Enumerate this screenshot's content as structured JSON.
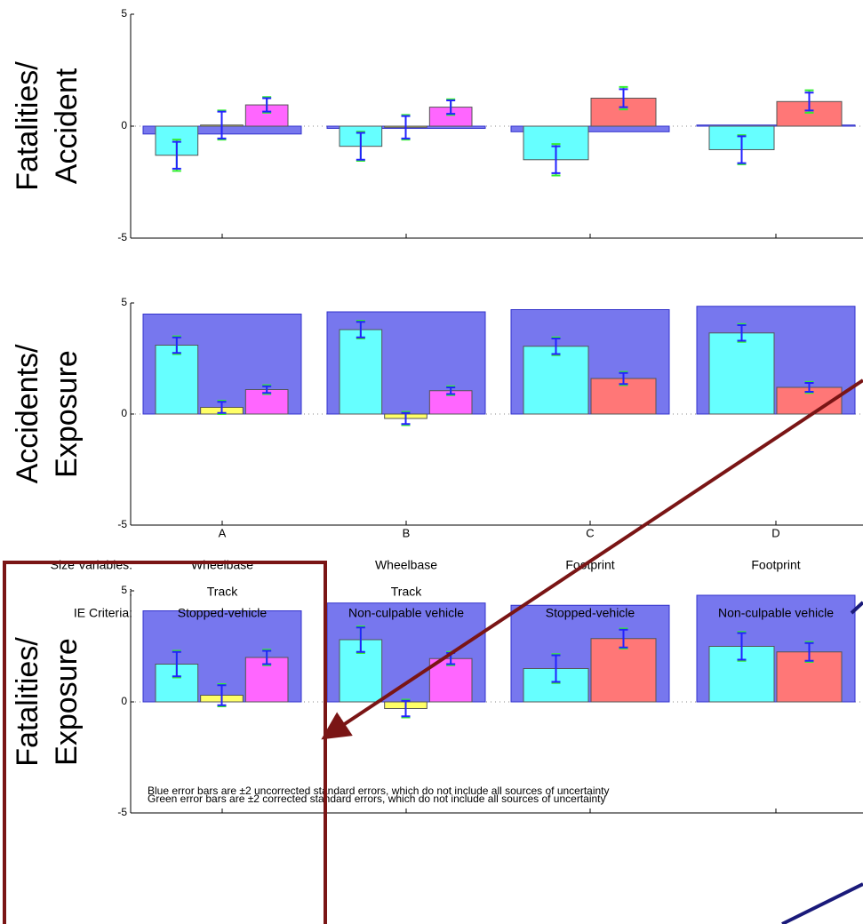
{
  "categories": [
    "A",
    "B",
    "C",
    "D"
  ],
  "notes": [
    {
      "text": "Blue error bars are ±2 uncorrected standard errors, which do not include all sources of uncertainty",
      "color": "#2222ff"
    },
    {
      "text": "Green error bars are ±2 corrected standard errors, which do not include all sources of uncertainty",
      "color": "#33ee33"
    }
  ],
  "table": {
    "rows": [
      {
        "label": "Size Variables:",
        "cells": [
          "Wheelbase",
          "Wheelbase",
          "Footprint",
          "Footprint"
        ]
      },
      {
        "label": ":",
        "cells": [
          "Track",
          "Track"
        ]
      },
      {
        "label": "IE Criteria:",
        "cells": [
          "Stopped-vehicle",
          "Non-culpable vehicle",
          "Stopped-vehicle",
          "Non-culpable vehicle"
        ]
      }
    ]
  },
  "chart_data": [
    {
      "type": "bar",
      "ylabel": [
        "Fatalities/",
        "Accident"
      ],
      "ylim": [
        -5,
        5
      ],
      "yticks": [
        -5,
        0,
        5
      ],
      "total_color": "#7777ee",
      "error_color": "#2222ff",
      "corrected_error_color": "#33ee33",
      "groups": [
        {
          "total": -0.35,
          "bars": [
            {
              "color": "#66ffff",
              "value": -1.3,
              "err": 0.6,
              "err_corrected": 0.7
            },
            {
              "color": "#ffff66",
              "value": 0.05,
              "err": 0.6,
              "err_corrected": 0.65
            },
            {
              "color": "#ff66ff",
              "value": 0.95,
              "err": 0.3,
              "err_corrected": 0.35
            }
          ]
        },
        {
          "total": -0.1,
          "bars": [
            {
              "color": "#66ffff",
              "value": -0.9,
              "err": 0.6,
              "err_corrected": 0.65
            },
            {
              "color": "#ffff66",
              "value": -0.05,
              "err": 0.5,
              "err_corrected": 0.55
            },
            {
              "color": "#ff66ff",
              "value": 0.85,
              "err": 0.3,
              "err_corrected": 0.35
            }
          ]
        },
        {
          "total": -0.25,
          "bars": [
            {
              "color": "#66ffff",
              "value": -1.5,
              "err": 0.6,
              "err_corrected": 0.7
            },
            {
              "color": "#ff7777",
              "value": 1.25,
              "err": 0.4,
              "err_corrected": 0.5
            }
          ]
        },
        {
          "total": 0.05,
          "bars": [
            {
              "color": "#66ffff",
              "value": -1.05,
              "err": 0.6,
              "err_corrected": 0.65
            },
            {
              "color": "#ff7777",
              "value": 1.1,
              "err": 0.4,
              "err_corrected": 0.5
            }
          ]
        }
      ]
    },
    {
      "type": "bar",
      "ylabel": [
        "Accidents/",
        "Exposure"
      ],
      "ylim": [
        -5,
        5
      ],
      "yticks": [
        -5,
        0,
        5
      ],
      "total_color": "#7777ee",
      "error_color": "#2222ff",
      "corrected_error_color": "#33ee33",
      "groups": [
        {
          "total": 4.5,
          "bars": [
            {
              "color": "#66ffff",
              "value": 3.1,
              "err": 0.35,
              "err_corrected": 0.4
            },
            {
              "color": "#ffff66",
              "value": 0.3,
              "err": 0.25,
              "err_corrected": 0.3
            },
            {
              "color": "#ff66ff",
              "value": 1.1,
              "err": 0.15,
              "err_corrected": 0.2
            }
          ]
        },
        {
          "total": 4.6,
          "bars": [
            {
              "color": "#66ffff",
              "value": 3.8,
              "err": 0.35,
              "err_corrected": 0.4
            },
            {
              "color": "#ffff66",
              "value": -0.2,
              "err": 0.25,
              "err_corrected": 0.3
            },
            {
              "color": "#ff66ff",
              "value": 1.05,
              "err": 0.15,
              "err_corrected": 0.2
            }
          ]
        },
        {
          "total": 4.7,
          "bars": [
            {
              "color": "#66ffff",
              "value": 3.05,
              "err": 0.35,
              "err_corrected": 0.4
            },
            {
              "color": "#ff7777",
              "value": 1.6,
              "err": 0.25,
              "err_corrected": 0.3
            }
          ]
        },
        {
          "total": 4.85,
          "bars": [
            {
              "color": "#66ffff",
              "value": 3.65,
              "err": 0.35,
              "err_corrected": 0.4
            },
            {
              "color": "#ff7777",
              "value": 1.2,
              "err": 0.2,
              "err_corrected": 0.25
            }
          ]
        }
      ]
    },
    {
      "type": "bar",
      "ylabel": [
        "Fatalities/",
        "Exposure"
      ],
      "ylim": [
        -5,
        5
      ],
      "yticks": [
        -5,
        0,
        5
      ],
      "total_color": "#7777ee",
      "error_color": "#2222ff",
      "corrected_error_color": "#33ee33",
      "groups": [
        {
          "total": 4.1,
          "bars": [
            {
              "color": "#66ffff",
              "value": 1.7,
              "err": 0.55,
              "err_corrected": 0.6
            },
            {
              "color": "#ffff66",
              "value": 0.3,
              "err": 0.45,
              "err_corrected": 0.5
            },
            {
              "color": "#ff66ff",
              "value": 2.0,
              "err": 0.3,
              "err_corrected": 0.35
            }
          ]
        },
        {
          "total": 4.45,
          "bars": [
            {
              "color": "#66ffff",
              "value": 2.8,
              "err": 0.55,
              "err_corrected": 0.6
            },
            {
              "color": "#ffff66",
              "value": -0.3,
              "err": 0.35,
              "err_corrected": 0.4
            },
            {
              "color": "#ff66ff",
              "value": 1.95,
              "err": 0.25,
              "err_corrected": 0.3
            }
          ]
        },
        {
          "total": 4.35,
          "bars": [
            {
              "color": "#66ffff",
              "value": 1.5,
              "err": 0.6,
              "err_corrected": 0.65
            },
            {
              "color": "#ff7777",
              "value": 2.85,
              "err": 0.4,
              "err_corrected": 0.45
            }
          ]
        },
        {
          "total": 4.8,
          "bars": [
            {
              "color": "#66ffff",
              "value": 2.5,
              "err": 0.6,
              "err_corrected": 0.65
            },
            {
              "color": "#ff7777",
              "value": 2.25,
              "err": 0.4,
              "err_corrected": 0.45
            }
          ]
        }
      ]
    }
  ]
}
